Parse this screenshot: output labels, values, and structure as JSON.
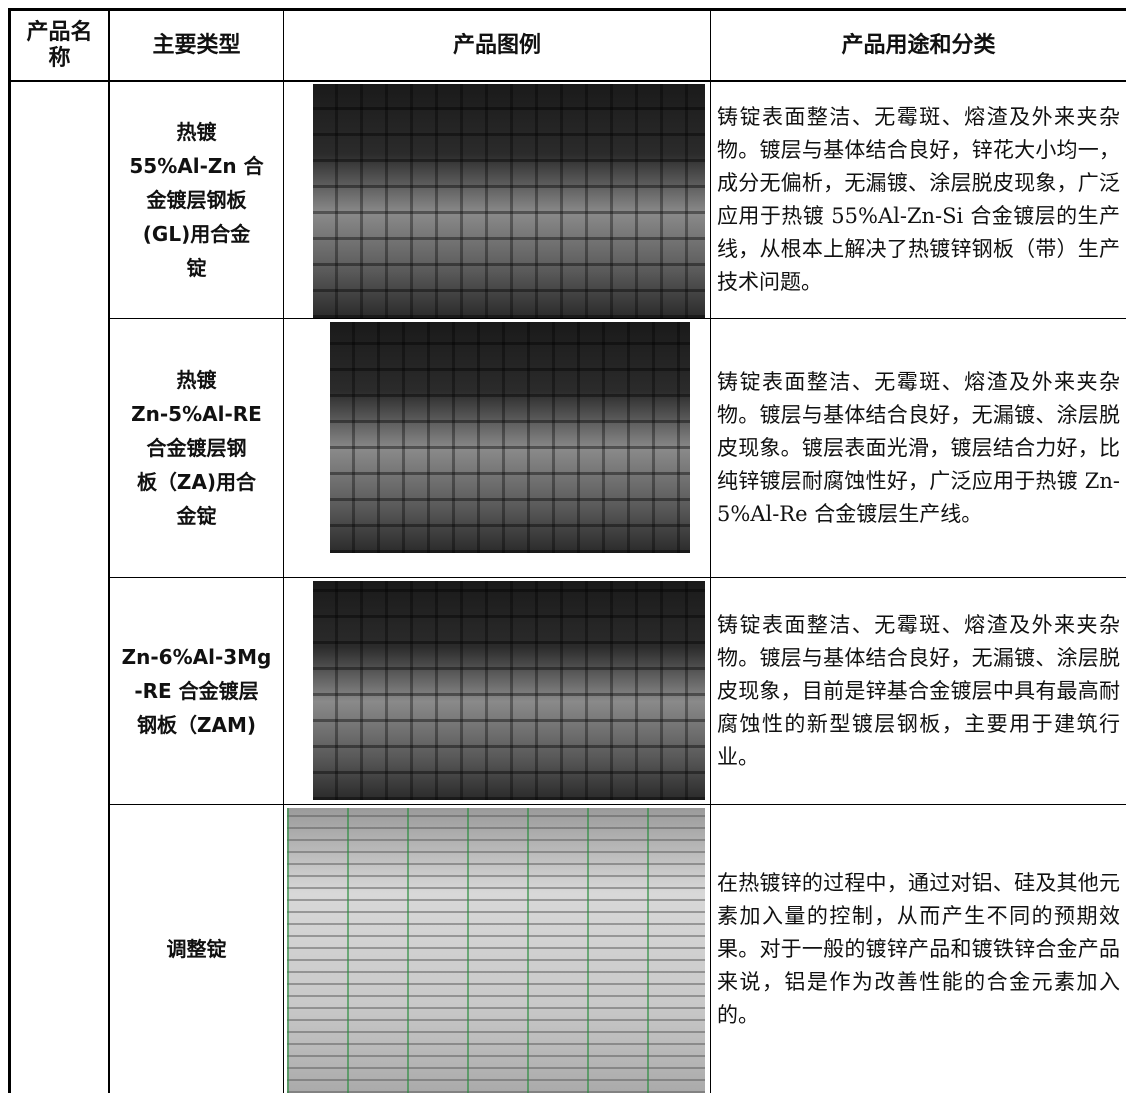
{
  "table": {
    "header": [
      "产品名称",
      "主要类型",
      "产品图例",
      "产品用途和分类"
    ],
    "rows": [
      {
        "type_lines": [
          "热镀",
          "55%Al-Zn 合",
          "金镀层钢板",
          "(GL)用合金",
          "锭"
        ],
        "description": "铸锭表面整洁、无霉斑、熔渣及外来夹杂物。镀层与基体结合良好，锌花大小均一，成分无偏析，无漏镀、涂层脱皮现象，广泛应用于热镀 55%Al-Zn-Si 合金镀层的生产线，从根本上解决了热镀锌钢板（带）生产技术问题。"
      },
      {
        "type_lines": [
          "热镀",
          "Zn-5%Al-RE",
          "合金镀层钢",
          "板（ZA)用合",
          "金锭"
        ],
        "description": "铸锭表面整洁、无霉斑、熔渣及外来夹杂物。镀层与基体结合良好，无漏镀、涂层脱皮现象。镀层表面光滑，镀层结合力好，比纯锌镀层耐腐蚀性好，广泛应用于热镀 Zn-5%Al-Re 合金镀层生产线。"
      },
      {
        "type_lines": [
          "Zn-6%Al-3Mg",
          "-RE 合金镀层",
          "钢板（ZAM)"
        ],
        "description": "铸锭表面整洁、无霉斑、熔渣及外来夹杂物。镀层与基体结合良好，无漏镀、涂层脱皮现象，目前是锌基合金镀层中具有最高耐腐蚀性的新型镀层钢板，主要用于建筑行业。"
      },
      {
        "type_lines": [
          "调整锭"
        ],
        "description": "在热镀锌的过程中，通过对铝、硅及其他元素加入量的控制，从而产生不同的预期效果。对于一般的镀锌产品和镀铁锌合金产品来说，铝是作为改善性能的合金元素加入的。"
      }
    ]
  }
}
